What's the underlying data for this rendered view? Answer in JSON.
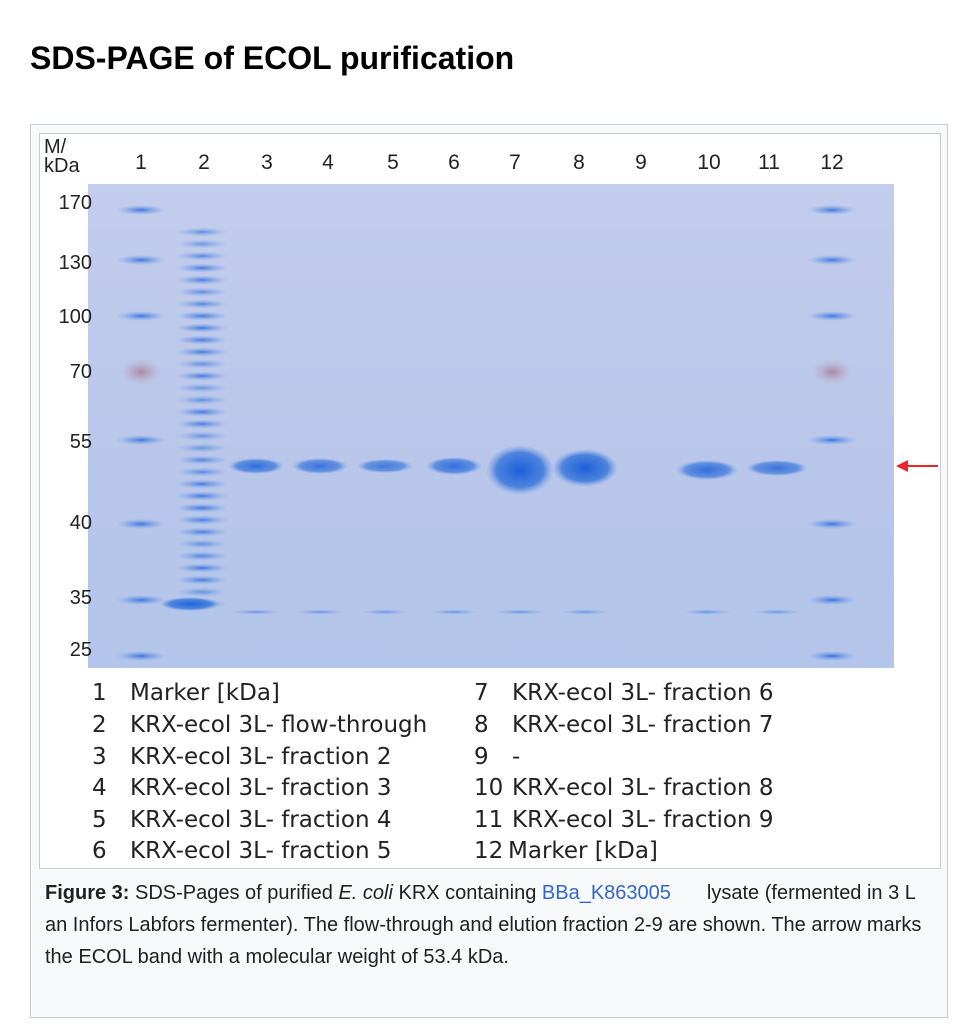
{
  "page": {
    "heading": "SDS-PAGE of ECOL purification"
  },
  "gel": {
    "axis_title_line1": "M/",
    "axis_title_line2": "kDa",
    "lanes": [
      "1",
      "2",
      "3",
      "4",
      "5",
      "6",
      "7",
      "8",
      "9",
      "10",
      "11",
      "12"
    ],
    "mw_markers": [
      "170",
      "130",
      "100",
      "70",
      "55",
      "40",
      "35",
      "25"
    ],
    "arrow_color": "#e8262a",
    "gel_color": "#b9c7ea",
    "band_color": "#2f6fd6"
  },
  "legend": {
    "left": [
      {
        "num": "1",
        "text": "Marker [kDa]"
      },
      {
        "num": "2",
        "text": "KRX-ecol 3L- flow-through"
      },
      {
        "num": "3",
        "text": "KRX-ecol 3L- fraction 2"
      },
      {
        "num": "4",
        "text": "KRX-ecol 3L- fraction 3"
      },
      {
        "num": "5",
        "text": "KRX-ecol 3L- fraction 4"
      },
      {
        "num": "6",
        "text": "KRX-ecol 3L- fraction 5"
      }
    ],
    "right": [
      {
        "num": "7",
        "text": "KRX-ecol 3L- fraction 6"
      },
      {
        "num": "8",
        "text": "KRX-ecol 3L- fraction 7"
      },
      {
        "num": "9",
        "text": "-"
      },
      {
        "num": "10",
        "text": "KRX-ecol 3L- fraction 8"
      },
      {
        "num": "11",
        "text": "KRX-ecol 3L- fraction 9"
      },
      {
        "num": "12",
        "text": "Marker [kDa]"
      }
    ]
  },
  "caption": {
    "label": "Figure 3:",
    "text_before_italic": " SDS-Pages of purified ",
    "italic": "E. coli",
    "text_before_link": " KRX containing ",
    "link": "BBa_K863005",
    "text_after_link": "lysate (fermented in 3 L an Infors Labfors fermenter). The flow-through and elution fraction 2-9 are shown. The arrow marks the ECOL band with a molecular weight of 53.4 kDa."
  }
}
